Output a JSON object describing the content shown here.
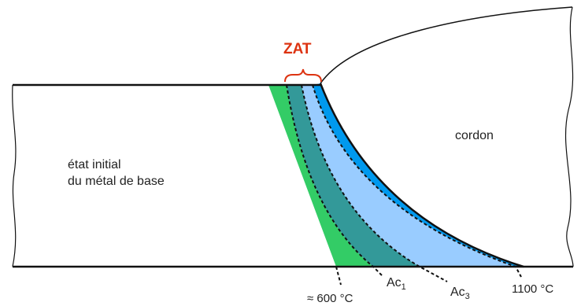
{
  "labels": {
    "zat": "ZAT",
    "cordon": "cordon",
    "base_line1": "état initial",
    "base_line2": "du métal de base",
    "t600": "≈ 600 °C",
    "ac1_main": "Ac",
    "ac1_sub": "1",
    "ac3_main": "Ac",
    "ac3_sub": "3",
    "t1100": "1100 °C"
  },
  "colors": {
    "zone_green": "#33cc66",
    "zone_teal": "#339999",
    "zone_lightblue": "#99ccff",
    "zone_blue": "#0099ee",
    "zat_label": "#dd3311",
    "outline": "#111111"
  }
}
